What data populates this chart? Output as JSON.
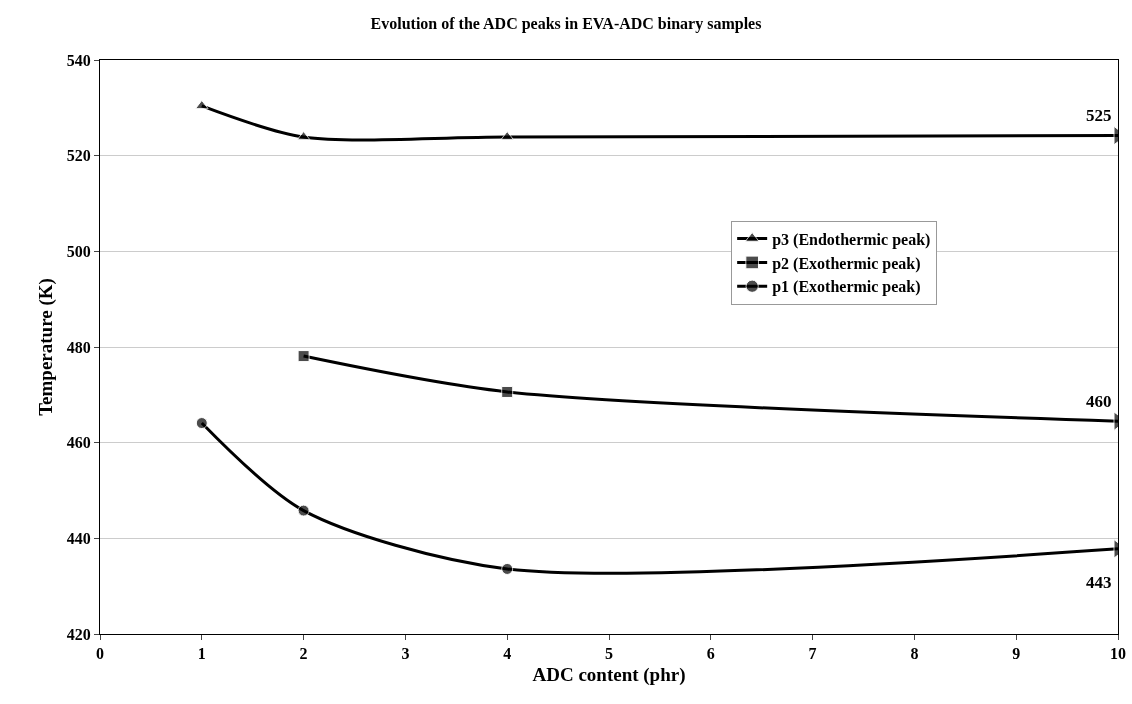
{
  "chart_data": {
    "type": "line",
    "title": "Evolution of the ADC peaks in EVA-ADC binary samples",
    "xlabel": "ADC content (phr)",
    "ylabel": "Temperature (K)",
    "xlim": [
      0,
      10
    ],
    "xticks": [
      0,
      1,
      2,
      3,
      4,
      5,
      6,
      7,
      8,
      9,
      10
    ],
    "ylim": [
      420,
      540
    ],
    "yticks": [
      420,
      440,
      460,
      480,
      500,
      520,
      540
    ],
    "grid": "y",
    "legend": "right",
    "series": [
      {
        "name": "p3 (Endothermic peak)",
        "color": "#000000",
        "marker": "triangle",
        "x": [
          1,
          2,
          4,
          10
        ],
        "values": [
          530.4,
          523.9,
          523.9,
          524.2
        ]
      },
      {
        "name": "p2 (Exothermic peak)",
        "color": "#000000",
        "marker": "square",
        "x": [
          2,
          4,
          10
        ],
        "values": [
          478.1,
          470.6,
          464.5
        ]
      },
      {
        "name": "p1 (Exothermic peak)",
        "color": "#000000",
        "marker": "circle",
        "x": [
          1,
          2,
          4,
          10
        ],
        "values": [
          464.1,
          445.8,
          433.6,
          437.8
        ]
      }
    ],
    "annotations": [
      "525",
      "460",
      "443"
    ]
  }
}
